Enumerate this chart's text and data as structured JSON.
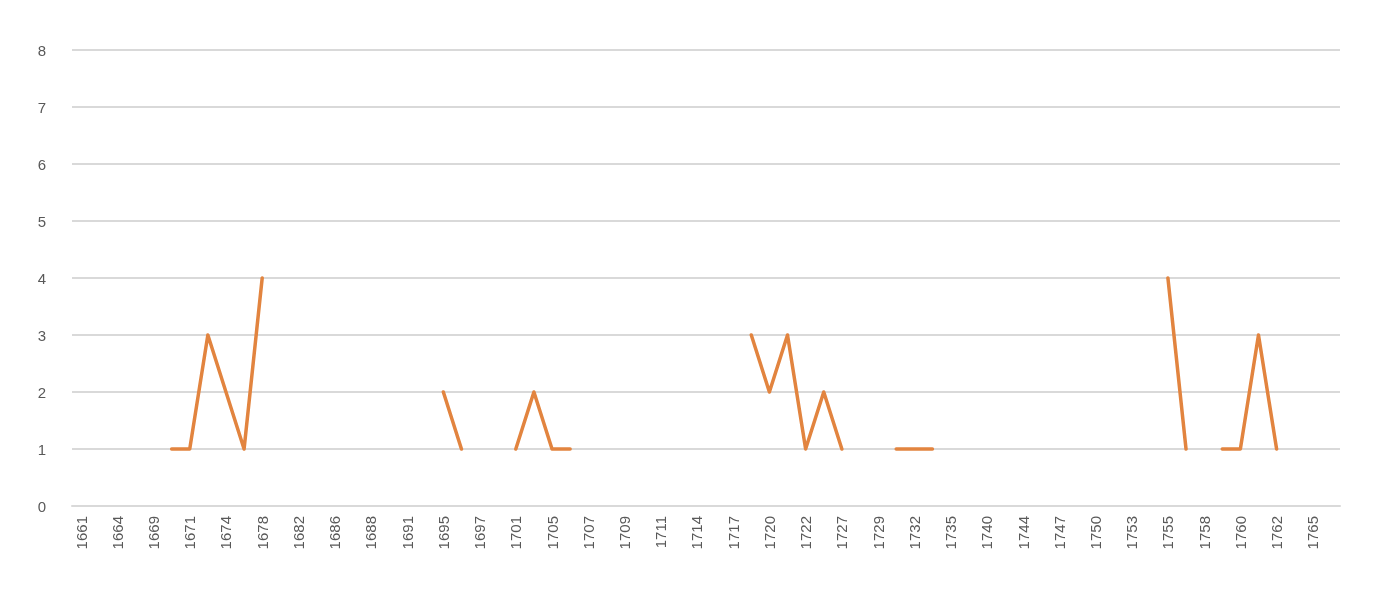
{
  "chart_data": {
    "type": "line",
    "categories": [
      "1661",
      null,
      "1664",
      null,
      "1669",
      null,
      "1671",
      null,
      "1674",
      null,
      "1678",
      null,
      "1682",
      null,
      "1686",
      null,
      "1688",
      null,
      "1691",
      null,
      "1695",
      null,
      "1697",
      null,
      "1701",
      null,
      "1705",
      null,
      "1707",
      null,
      "1709",
      null,
      "1711",
      null,
      "1714",
      null,
      "1717",
      null,
      "1720",
      null,
      "1722",
      null,
      "1727",
      null,
      "1729",
      null,
      "1732",
      null,
      "1735",
      null,
      "1740",
      null,
      "1744",
      null,
      "1747",
      null,
      "1750",
      null,
      "1753",
      null,
      "1755",
      null,
      "1758",
      null,
      "1760",
      null,
      "1762",
      null,
      "1765",
      null
    ],
    "values": [
      null,
      null,
      null,
      null,
      null,
      1,
      1,
      3,
      2,
      1,
      4,
      null,
      null,
      null,
      null,
      null,
      null,
      null,
      null,
      null,
      2,
      1,
      null,
      null,
      1,
      2,
      1,
      1,
      null,
      null,
      null,
      null,
      null,
      null,
      null,
      null,
      null,
      3,
      2,
      3,
      1,
      2,
      1,
      null,
      null,
      1,
      1,
      1,
      null,
      null,
      null,
      null,
      null,
      null,
      null,
      null,
      null,
      null,
      null,
      null,
      4,
      1,
      null,
      1,
      1,
      3,
      1,
      null,
      null,
      null
    ],
    "color": "#e2843f",
    "ylim": [
      0,
      8
    ],
    "yticks": [
      0,
      1,
      2,
      3,
      4,
      5,
      6,
      7,
      8
    ],
    "grid": "y",
    "marker": "none",
    "line_style": "solid"
  }
}
